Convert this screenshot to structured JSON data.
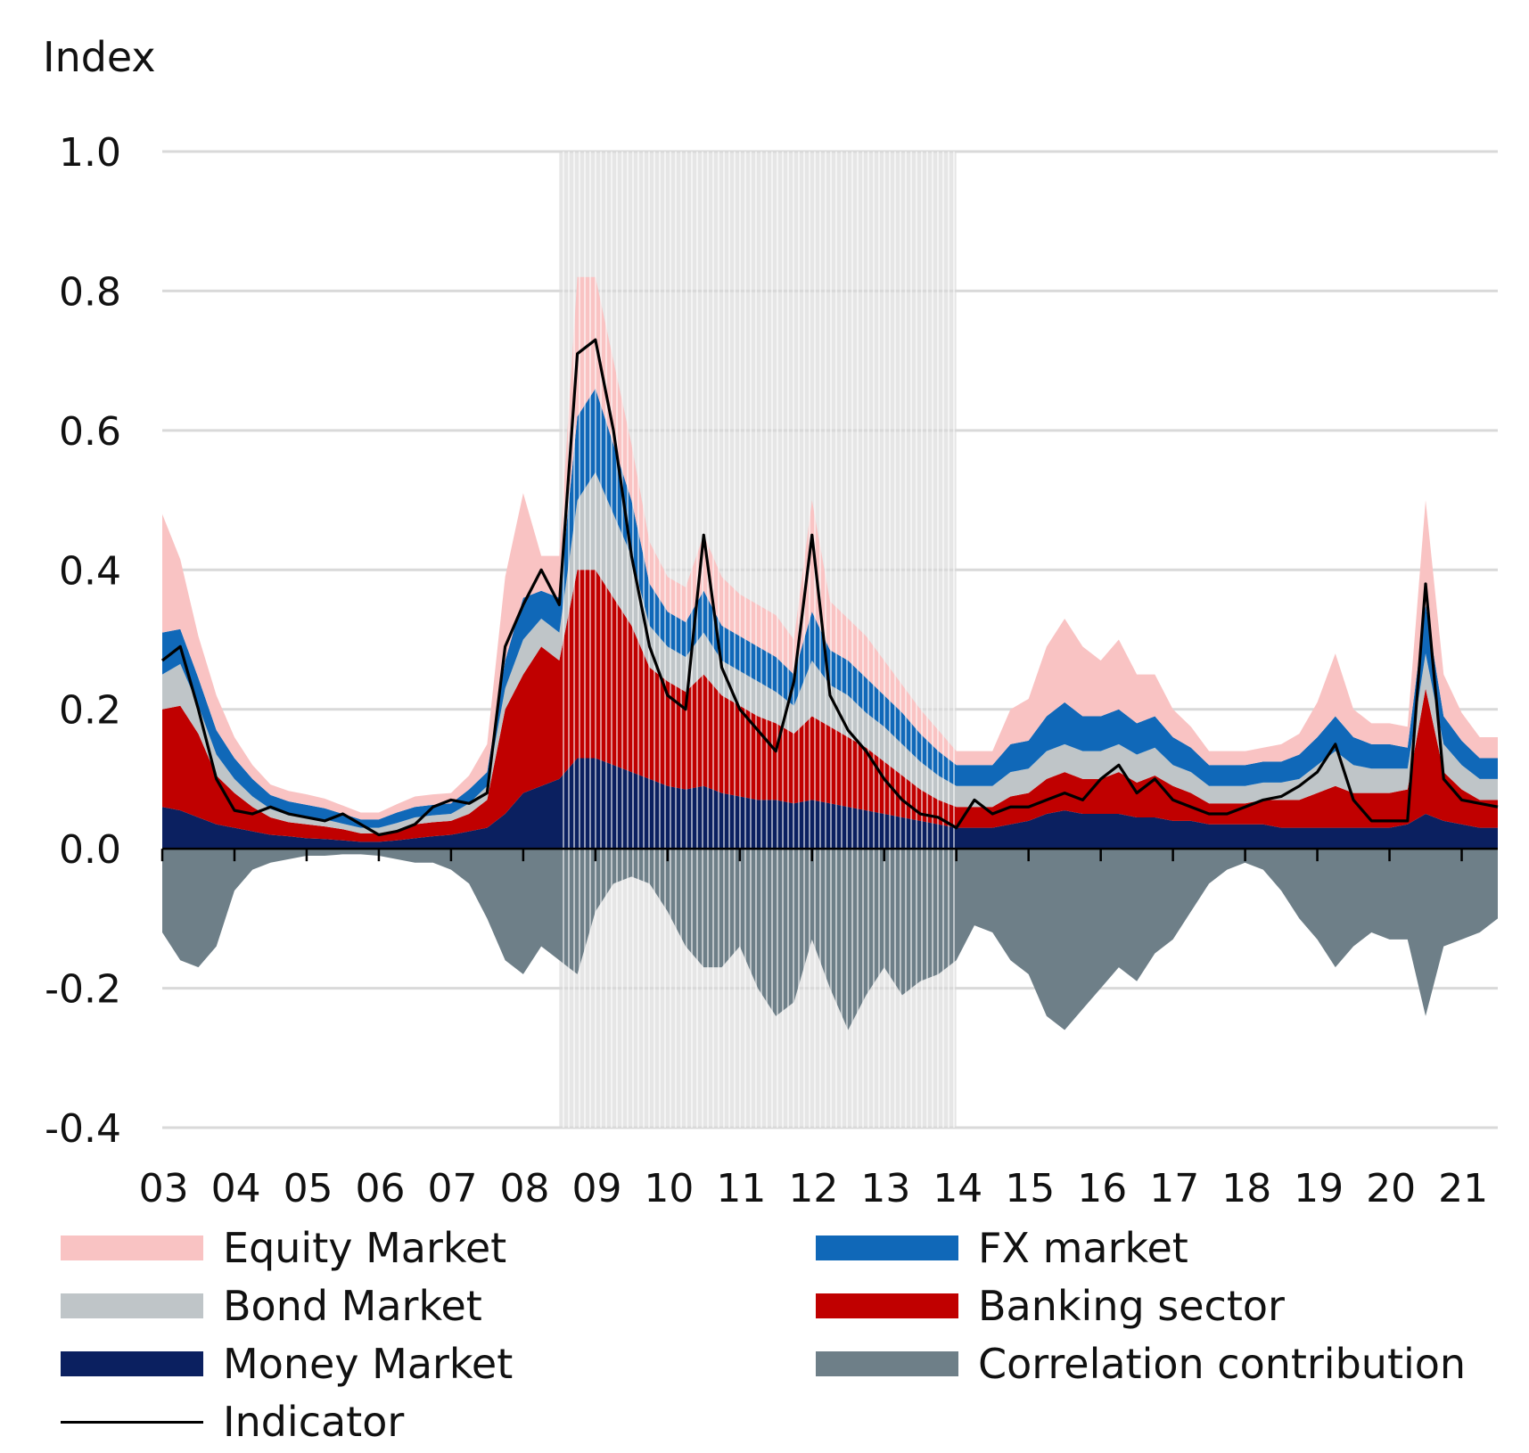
{
  "chart_data": {
    "type": "area",
    "ylabel": "Index",
    "ylim": [
      -0.4,
      1.0
    ],
    "yticks": [
      "1.0",
      "0.8",
      "0.6",
      "0.4",
      "0.2",
      "0.0",
      "-0.2",
      "-0.4"
    ],
    "xlim": [
      2003.0,
      2021.5
    ],
    "xticks": [
      "03",
      "04",
      "05",
      "06",
      "07",
      "08",
      "09",
      "10",
      "11",
      "12",
      "13",
      "14",
      "15",
      "16",
      "17",
      "18",
      "19",
      "20",
      "21"
    ],
    "grid": true,
    "legend_position": "bottom",
    "shaded_period": {
      "start": 2008.5,
      "end": 2014.0
    },
    "x": [
      2003.0,
      2003.25,
      2003.5,
      2003.75,
      2004.0,
      2004.25,
      2004.5,
      2004.75,
      2005.0,
      2005.25,
      2005.5,
      2005.75,
      2006.0,
      2006.25,
      2006.5,
      2006.75,
      2007.0,
      2007.25,
      2007.5,
      2007.75,
      2008.0,
      2008.25,
      2008.5,
      2008.75,
      2009.0,
      2009.25,
      2009.5,
      2009.75,
      2010.0,
      2010.25,
      2010.5,
      2010.75,
      2011.0,
      2011.25,
      2011.5,
      2011.75,
      2012.0,
      2012.25,
      2012.5,
      2012.75,
      2013.0,
      2013.25,
      2013.5,
      2013.75,
      2014.0,
      2014.25,
      2014.5,
      2014.75,
      2015.0,
      2015.25,
      2015.5,
      2015.75,
      2016.0,
      2016.25,
      2016.5,
      2016.75,
      2017.0,
      2017.25,
      2017.5,
      2017.75,
      2018.0,
      2018.25,
      2018.5,
      2018.75,
      2019.0,
      2019.25,
      2019.5,
      2019.75,
      2020.0,
      2020.25,
      2020.5,
      2020.75,
      2021.0,
      2021.25,
      2021.5
    ],
    "series": [
      {
        "name": "Money Market",
        "color": "#0b2060",
        "values": [
          0.06,
          0.055,
          0.045,
          0.035,
          0.03,
          0.025,
          0.02,
          0.018,
          0.015,
          0.014,
          0.012,
          0.01,
          0.01,
          0.012,
          0.015,
          0.018,
          0.02,
          0.025,
          0.03,
          0.05,
          0.08,
          0.09,
          0.1,
          0.13,
          0.13,
          0.12,
          0.11,
          0.1,
          0.09,
          0.085,
          0.09,
          0.08,
          0.075,
          0.07,
          0.07,
          0.065,
          0.07,
          0.065,
          0.06,
          0.055,
          0.05,
          0.045,
          0.04,
          0.035,
          0.03,
          0.03,
          0.03,
          0.035,
          0.04,
          0.05,
          0.055,
          0.05,
          0.05,
          0.05,
          0.045,
          0.045,
          0.04,
          0.04,
          0.035,
          0.035,
          0.035,
          0.035,
          0.03,
          0.03,
          0.03,
          0.03,
          0.03,
          0.03,
          0.03,
          0.035,
          0.05,
          0.04,
          0.035,
          0.03,
          0.03
        ]
      },
      {
        "name": "Banking sector",
        "color": "#c00000",
        "values": [
          0.14,
          0.15,
          0.12,
          0.07,
          0.05,
          0.035,
          0.025,
          0.02,
          0.02,
          0.018,
          0.016,
          0.012,
          0.012,
          0.015,
          0.02,
          0.02,
          0.02,
          0.025,
          0.04,
          0.15,
          0.17,
          0.2,
          0.17,
          0.27,
          0.27,
          0.24,
          0.21,
          0.16,
          0.15,
          0.14,
          0.16,
          0.14,
          0.13,
          0.12,
          0.11,
          0.1,
          0.12,
          0.11,
          0.1,
          0.09,
          0.075,
          0.06,
          0.045,
          0.035,
          0.03,
          0.03,
          0.03,
          0.04,
          0.04,
          0.05,
          0.055,
          0.05,
          0.05,
          0.06,
          0.05,
          0.06,
          0.05,
          0.04,
          0.03,
          0.03,
          0.03,
          0.035,
          0.04,
          0.04,
          0.05,
          0.06,
          0.05,
          0.05,
          0.05,
          0.05,
          0.18,
          0.07,
          0.05,
          0.04,
          0.04
        ]
      },
      {
        "name": "Bond Market",
        "color": "#bfc5c8",
        "values": [
          0.05,
          0.06,
          0.04,
          0.03,
          0.02,
          0.015,
          0.012,
          0.01,
          0.01,
          0.01,
          0.008,
          0.008,
          0.008,
          0.01,
          0.01,
          0.01,
          0.01,
          0.015,
          0.02,
          0.03,
          0.05,
          0.04,
          0.04,
          0.1,
          0.14,
          0.12,
          0.1,
          0.06,
          0.05,
          0.05,
          0.06,
          0.05,
          0.05,
          0.05,
          0.045,
          0.04,
          0.08,
          0.06,
          0.06,
          0.05,
          0.05,
          0.045,
          0.04,
          0.035,
          0.03,
          0.03,
          0.03,
          0.035,
          0.035,
          0.04,
          0.04,
          0.04,
          0.04,
          0.04,
          0.04,
          0.04,
          0.03,
          0.03,
          0.025,
          0.025,
          0.025,
          0.025,
          0.025,
          0.03,
          0.04,
          0.05,
          0.04,
          0.035,
          0.035,
          0.03,
          0.05,
          0.04,
          0.035,
          0.03,
          0.03
        ]
      },
      {
        "name": "FX market",
        "color": "#1068b8",
        "values": [
          0.06,
          0.05,
          0.04,
          0.035,
          0.03,
          0.025,
          0.02,
          0.02,
          0.018,
          0.016,
          0.014,
          0.012,
          0.012,
          0.015,
          0.015,
          0.015,
          0.015,
          0.02,
          0.02,
          0.04,
          0.06,
          0.04,
          0.05,
          0.12,
          0.12,
          0.1,
          0.08,
          0.06,
          0.05,
          0.05,
          0.06,
          0.05,
          0.05,
          0.05,
          0.05,
          0.045,
          0.07,
          0.05,
          0.05,
          0.05,
          0.045,
          0.045,
          0.04,
          0.035,
          0.03,
          0.03,
          0.03,
          0.04,
          0.04,
          0.05,
          0.06,
          0.05,
          0.05,
          0.05,
          0.045,
          0.045,
          0.04,
          0.035,
          0.03,
          0.03,
          0.03,
          0.03,
          0.03,
          0.035,
          0.04,
          0.05,
          0.04,
          0.035,
          0.035,
          0.03,
          0.07,
          0.04,
          0.035,
          0.03,
          0.03
        ]
      },
      {
        "name": "Equity Market",
        "color": "#f9c3c3",
        "values": [
          0.17,
          0.1,
          0.06,
          0.05,
          0.03,
          0.02,
          0.015,
          0.015,
          0.015,
          0.014,
          0.012,
          0.01,
          0.01,
          0.012,
          0.015,
          0.015,
          0.015,
          0.02,
          0.04,
          0.12,
          0.15,
          0.05,
          0.06,
          0.2,
          0.16,
          0.12,
          0.08,
          0.06,
          0.05,
          0.05,
          0.08,
          0.07,
          0.06,
          0.06,
          0.06,
          0.05,
          0.16,
          0.07,
          0.06,
          0.06,
          0.05,
          0.04,
          0.035,
          0.03,
          0.02,
          0.02,
          0.02,
          0.05,
          0.06,
          0.1,
          0.12,
          0.1,
          0.08,
          0.1,
          0.07,
          0.06,
          0.04,
          0.03,
          0.02,
          0.02,
          0.02,
          0.02,
          0.025,
          0.03,
          0.05,
          0.09,
          0.04,
          0.03,
          0.03,
          0.03,
          0.15,
          0.06,
          0.04,
          0.03,
          0.03
        ]
      },
      {
        "name": "Correlation contribution",
        "color": "#6e7f88",
        "values": [
          -0.12,
          -0.16,
          -0.17,
          -0.14,
          -0.06,
          -0.03,
          -0.02,
          -0.015,
          -0.01,
          -0.01,
          -0.008,
          -0.008,
          -0.01,
          -0.015,
          -0.02,
          -0.02,
          -0.03,
          -0.05,
          -0.1,
          -0.16,
          -0.18,
          -0.14,
          -0.16,
          -0.18,
          -0.09,
          -0.05,
          -0.04,
          -0.05,
          -0.09,
          -0.14,
          -0.17,
          -0.17,
          -0.14,
          -0.2,
          -0.24,
          -0.22,
          -0.13,
          -0.2,
          -0.26,
          -0.21,
          -0.17,
          -0.21,
          -0.19,
          -0.18,
          -0.16,
          -0.11,
          -0.12,
          -0.16,
          -0.18,
          -0.24,
          -0.26,
          -0.23,
          -0.2,
          -0.17,
          -0.19,
          -0.15,
          -0.13,
          -0.09,
          -0.05,
          -0.03,
          -0.02,
          -0.03,
          -0.06,
          -0.1,
          -0.13,
          -0.17,
          -0.14,
          -0.12,
          -0.13,
          -0.13,
          -0.24,
          -0.14,
          -0.13,
          -0.12,
          -0.1
        ]
      },
      {
        "name": "Indicator",
        "color": "#000000",
        "values": [
          0.27,
          0.29,
          0.2,
          0.1,
          0.055,
          0.05,
          0.06,
          0.05,
          0.045,
          0.04,
          0.05,
          0.035,
          0.02,
          0.025,
          0.035,
          0.06,
          0.07,
          0.065,
          0.08,
          0.29,
          0.35,
          0.4,
          0.35,
          0.71,
          0.73,
          0.6,
          0.42,
          0.29,
          0.22,
          0.2,
          0.45,
          0.26,
          0.2,
          0.17,
          0.14,
          0.24,
          0.45,
          0.22,
          0.17,
          0.14,
          0.1,
          0.07,
          0.05,
          0.045,
          0.03,
          0.07,
          0.05,
          0.06,
          0.06,
          0.07,
          0.08,
          0.07,
          0.1,
          0.12,
          0.08,
          0.1,
          0.07,
          0.06,
          0.05,
          0.05,
          0.06,
          0.07,
          0.075,
          0.09,
          0.11,
          0.15,
          0.07,
          0.04,
          0.04,
          0.04,
          0.38,
          0.1,
          0.07,
          0.065,
          0.06
        ]
      }
    ]
  }
}
